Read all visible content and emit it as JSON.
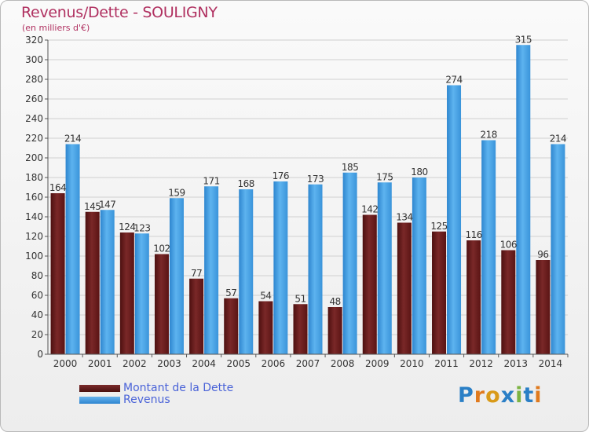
{
  "title": "Revenus/Dette - SOULIGNY",
  "subtitle": "(en milliers d'€)",
  "legend": {
    "dette": "Montant de la Dette",
    "revenus": "Revenus"
  },
  "logo": {
    "text": "Proxiti",
    "letters": [
      "P",
      "r",
      "o",
      "x",
      "i",
      "t",
      "i"
    ],
    "colors": [
      "#2a7fc6",
      "#e07a1e",
      "#d99a18",
      "#2a7fc6",
      "#7cb342",
      "#2a7fc6",
      "#e07a1e"
    ]
  },
  "colors": {
    "dette": "#6e1f1f",
    "revenus": "#4ea6e8",
    "grid": "#d0d0d0",
    "axis": "#555555"
  },
  "chart_data": {
    "type": "bar",
    "title": "Revenus/Dette - SOULIGNY",
    "ylabel": "(en milliers d'€)",
    "xlabel": "",
    "ylim": [
      0,
      320
    ],
    "ytick_step": 20,
    "grid": true,
    "legend_position": "bottom-left",
    "categories": [
      "2000",
      "2001",
      "2002",
      "2003",
      "2004",
      "2005",
      "2006",
      "2007",
      "2008",
      "2009",
      "2010",
      "2011",
      "2012",
      "2013",
      "2014"
    ],
    "series": [
      {
        "name": "Montant de la Dette",
        "values": [
          164,
          145,
          124,
          102,
          77,
          57,
          54,
          51,
          48,
          142,
          134,
          125,
          116,
          106,
          96
        ]
      },
      {
        "name": "Revenus",
        "values": [
          214,
          147,
          123,
          159,
          171,
          168,
          176,
          173,
          185,
          175,
          180,
          274,
          218,
          315,
          214
        ]
      }
    ]
  }
}
